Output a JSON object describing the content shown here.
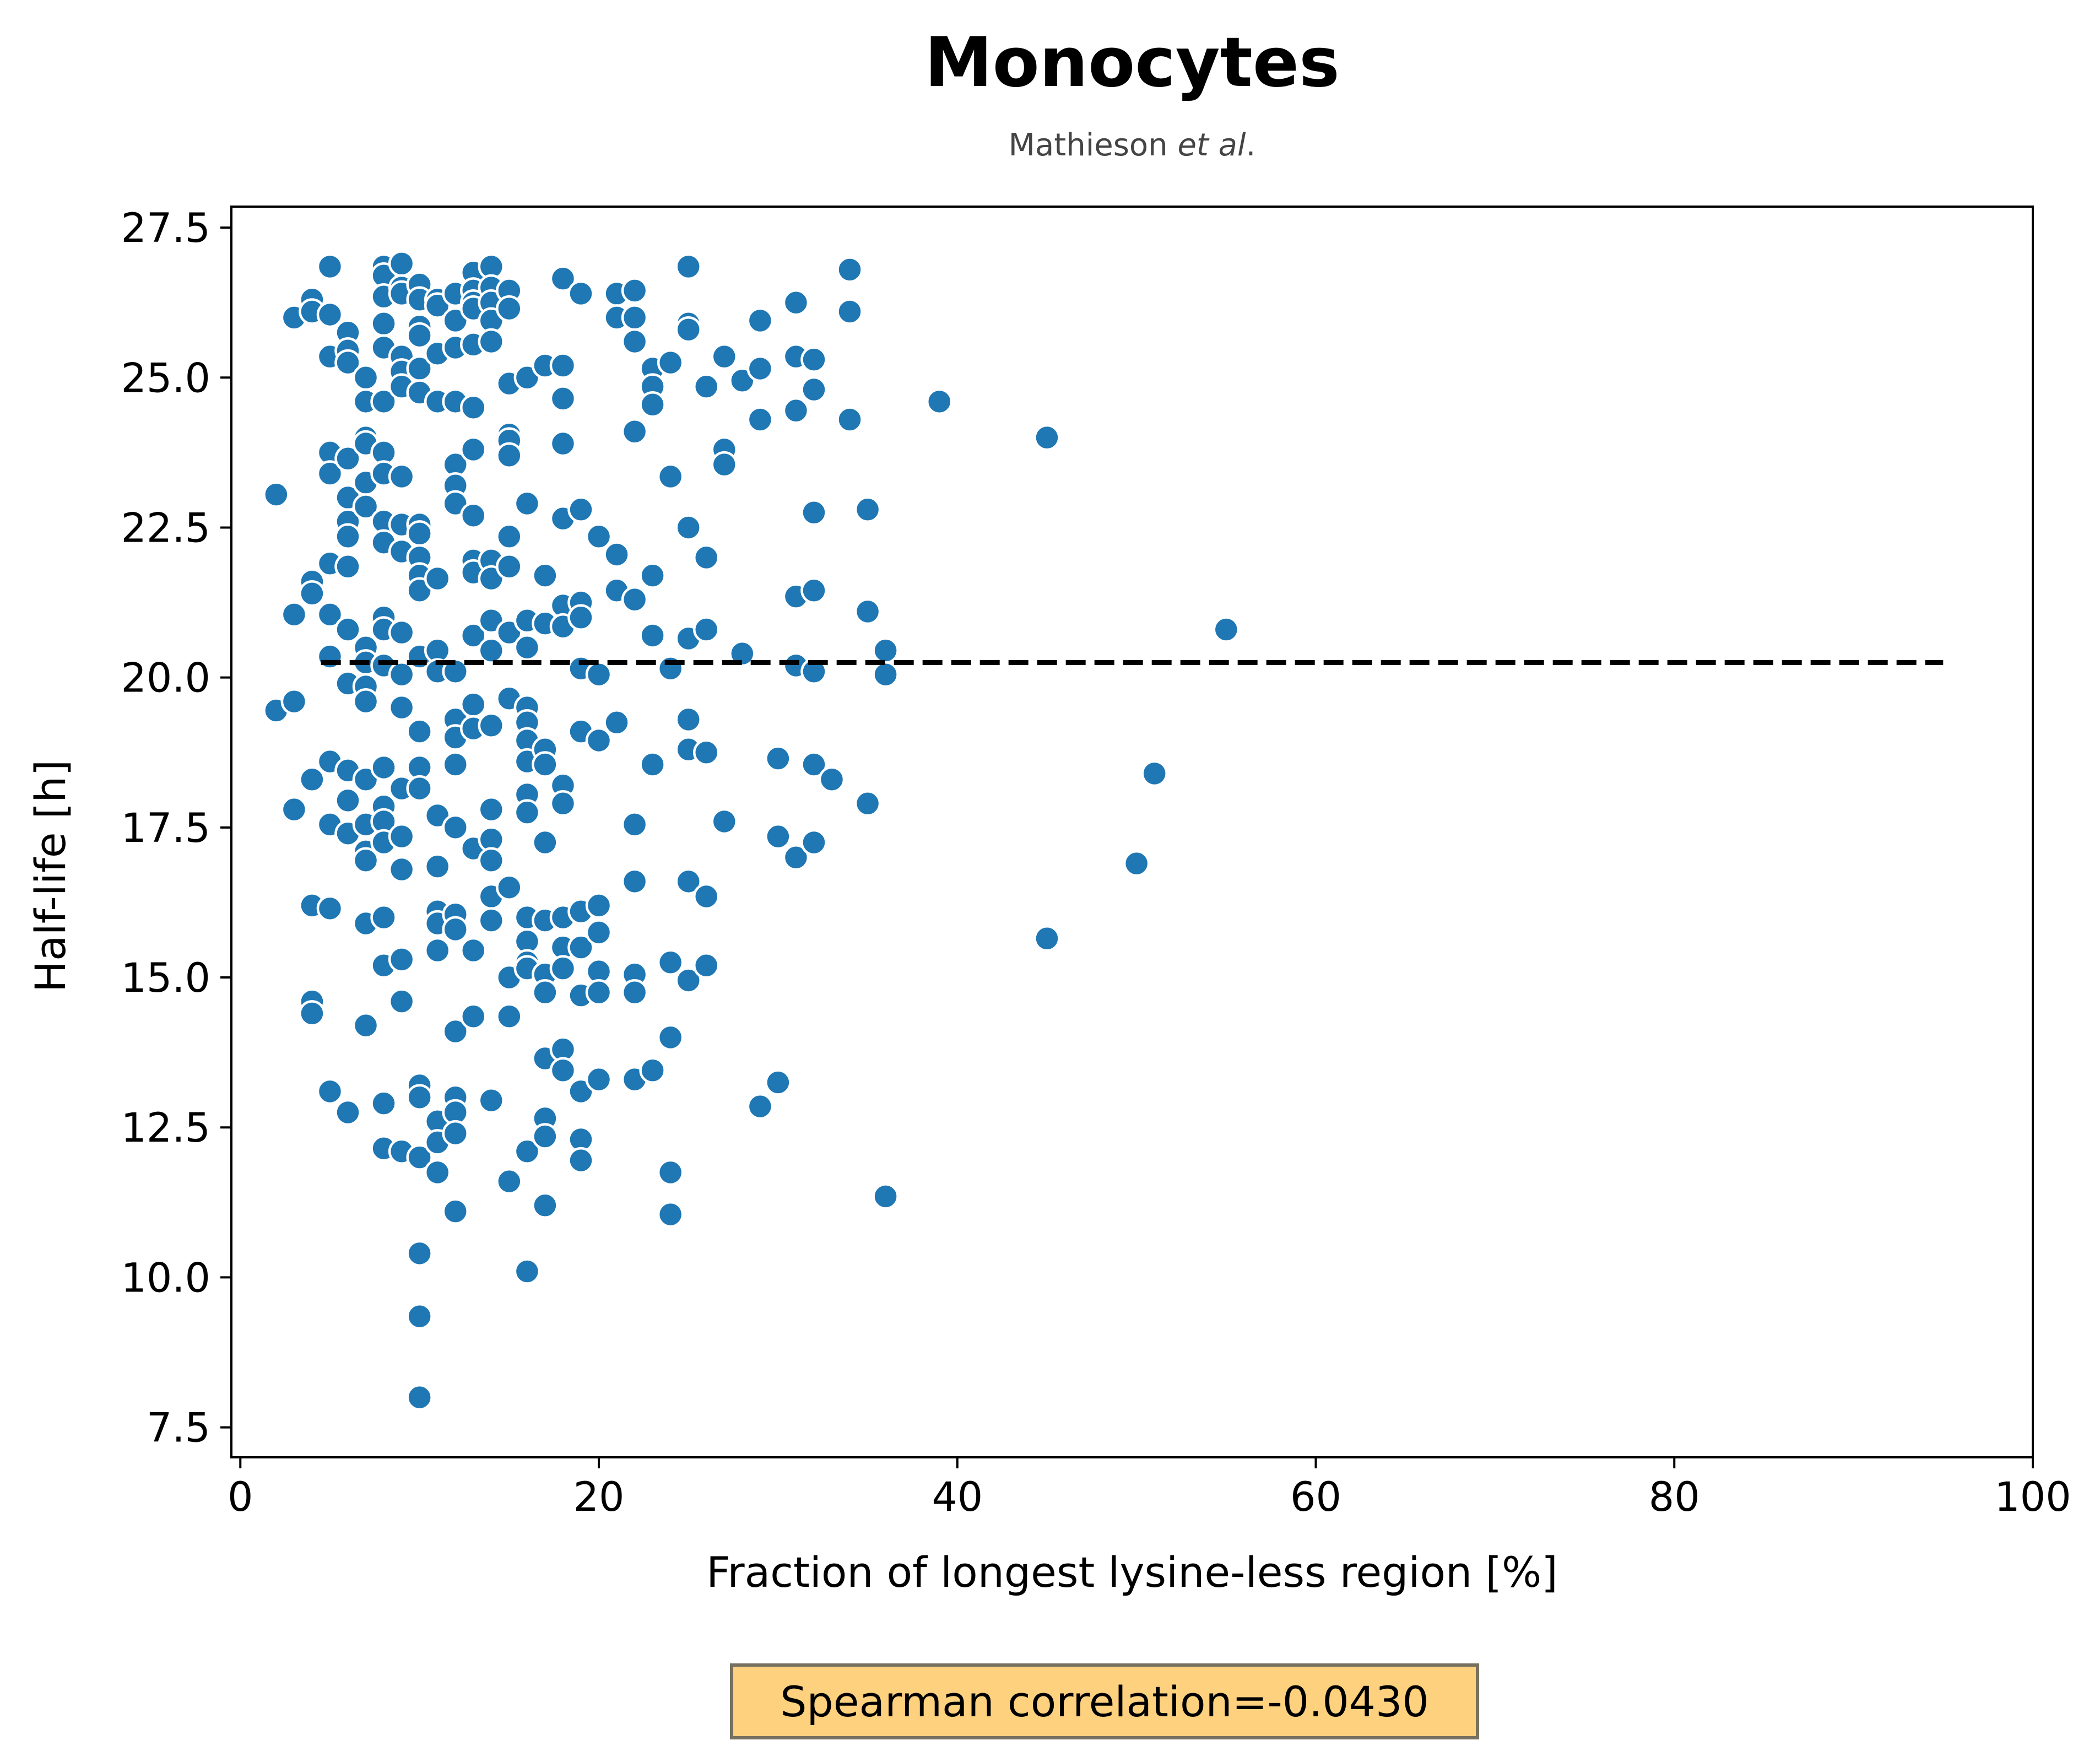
{
  "chart_data": {
    "type": "scatter",
    "title": "Monocytes",
    "subtitle_prefix": "Mathieson ",
    "subtitle_italic": "et al",
    "subtitle_suffix": ".",
    "xlabel": "Fraction of longest lysine-less region [%]",
    "ylabel": "Half-life [h]",
    "xlim": [
      -0.5,
      100
    ],
    "ylim": [
      7.0,
      27.85
    ],
    "xticks": [
      0,
      20,
      40,
      60,
      80,
      100
    ],
    "xtick_labels": [
      "0",
      "20",
      "40",
      "60",
      "80",
      "100"
    ],
    "yticks": [
      7.5,
      10.0,
      12.5,
      15.0,
      17.5,
      20.0,
      22.5,
      25.0,
      27.5
    ],
    "ytick_labels": [
      "7.5",
      "10.0",
      "12.5",
      "15.0",
      "17.5",
      "20.0",
      "22.5",
      "25.0",
      "27.5"
    ],
    "grid": false,
    "point_color": "#1f77b4",
    "trend_color": "#000000",
    "trend_line": {
      "x": [
        4.5,
        95
      ],
      "y": [
        20.25,
        20.25
      ],
      "style": "dashed"
    },
    "annotation": {
      "text": "Spearman correlation=-0.0430",
      "facecolor": "#fdd17e",
      "edgecolor": "#77705f"
    },
    "points": [
      [
        2,
        23.05
      ],
      [
        2,
        19.45
      ],
      [
        3,
        26.0
      ],
      [
        3,
        21.05
      ],
      [
        3,
        19.6
      ],
      [
        3,
        17.8
      ],
      [
        4,
        26.3
      ],
      [
        4,
        26.1
      ],
      [
        4,
        21.6
      ],
      [
        4,
        21.4
      ],
      [
        4,
        18.3
      ],
      [
        4,
        16.2
      ],
      [
        4,
        14.6
      ],
      [
        4,
        14.4
      ],
      [
        5,
        26.85
      ],
      [
        5,
        26.05
      ],
      [
        5,
        25.35
      ],
      [
        5,
        23.75
      ],
      [
        5,
        23.4
      ],
      [
        5,
        21.9
      ],
      [
        5,
        21.05
      ],
      [
        5,
        20.35
      ],
      [
        5,
        18.6
      ],
      [
        5,
        17.55
      ],
      [
        5,
        16.15
      ],
      [
        5,
        13.1
      ],
      [
        6,
        25.75
      ],
      [
        6,
        25.45
      ],
      [
        6,
        25.25
      ],
      [
        6,
        23.65
      ],
      [
        6,
        23.0
      ],
      [
        6,
        22.6
      ],
      [
        6,
        22.35
      ],
      [
        6,
        21.85
      ],
      [
        6,
        20.8
      ],
      [
        6,
        19.9
      ],
      [
        6,
        18.45
      ],
      [
        6,
        17.95
      ],
      [
        6,
        17.4
      ],
      [
        6,
        12.75
      ],
      [
        7,
        25.0
      ],
      [
        7,
        24.6
      ],
      [
        7,
        24.0
      ],
      [
        7,
        23.9
      ],
      [
        7,
        23.25
      ],
      [
        7,
        22.85
      ],
      [
        7,
        20.5
      ],
      [
        7,
        20.25
      ],
      [
        7,
        19.85
      ],
      [
        7,
        19.6
      ],
      [
        7,
        18.3
      ],
      [
        7,
        17.55
      ],
      [
        7,
        17.1
      ],
      [
        7,
        16.95
      ],
      [
        7,
        15.9
      ],
      [
        7,
        14.2
      ],
      [
        8,
        26.85
      ],
      [
        8,
        26.7
      ],
      [
        8,
        26.35
      ],
      [
        8,
        25.9
      ],
      [
        8,
        25.5
      ],
      [
        8,
        24.6
      ],
      [
        8,
        23.75
      ],
      [
        8,
        23.4
      ],
      [
        8,
        22.6
      ],
      [
        8,
        22.25
      ],
      [
        8,
        21.0
      ],
      [
        8,
        20.8
      ],
      [
        8,
        20.2
      ],
      [
        8,
        18.5
      ],
      [
        8,
        17.85
      ],
      [
        8,
        17.6
      ],
      [
        8,
        17.25
      ],
      [
        8,
        16.0
      ],
      [
        8,
        15.2
      ],
      [
        8,
        12.9
      ],
      [
        8,
        12.15
      ],
      [
        9,
        26.9
      ],
      [
        9,
        26.5
      ],
      [
        9,
        26.4
      ],
      [
        9,
        25.35
      ],
      [
        9,
        25.1
      ],
      [
        9,
        24.85
      ],
      [
        9,
        23.35
      ],
      [
        9,
        22.55
      ],
      [
        9,
        22.1
      ],
      [
        9,
        20.75
      ],
      [
        9,
        20.05
      ],
      [
        9,
        19.5
      ],
      [
        9,
        18.15
      ],
      [
        9,
        17.35
      ],
      [
        9,
        16.8
      ],
      [
        9,
        15.3
      ],
      [
        9,
        14.6
      ],
      [
        9,
        12.1
      ],
      [
        10,
        26.55
      ],
      [
        10,
        26.3
      ],
      [
        10,
        25.85
      ],
      [
        10,
        25.7
      ],
      [
        10,
        25.15
      ],
      [
        10,
        24.75
      ],
      [
        10,
        22.55
      ],
      [
        10,
        22.4
      ],
      [
        10,
        22.0
      ],
      [
        10,
        21.7
      ],
      [
        10,
        21.45
      ],
      [
        10,
        20.35
      ],
      [
        10,
        19.1
      ],
      [
        10,
        18.5
      ],
      [
        10,
        18.15
      ],
      [
        10,
        13.2
      ],
      [
        10,
        13.0
      ],
      [
        10,
        12.0
      ],
      [
        10,
        10.4
      ],
      [
        10,
        9.35
      ],
      [
        10,
        8.0
      ],
      [
        11,
        26.3
      ],
      [
        11,
        26.2
      ],
      [
        11,
        25.4
      ],
      [
        11,
        24.6
      ],
      [
        11,
        21.65
      ],
      [
        11,
        20.45
      ],
      [
        11,
        20.1
      ],
      [
        11,
        17.7
      ],
      [
        11,
        16.85
      ],
      [
        11,
        16.1
      ],
      [
        11,
        15.9
      ],
      [
        11,
        15.45
      ],
      [
        11,
        12.6
      ],
      [
        11,
        12.25
      ],
      [
        11,
        11.75
      ],
      [
        12,
        26.4
      ],
      [
        12,
        25.95
      ],
      [
        12,
        25.5
      ],
      [
        12,
        24.6
      ],
      [
        12,
        23.55
      ],
      [
        12,
        23.2
      ],
      [
        12,
        22.9
      ],
      [
        12,
        20.1
      ],
      [
        12,
        19.3
      ],
      [
        12,
        19.0
      ],
      [
        12,
        18.55
      ],
      [
        12,
        17.5
      ],
      [
        12,
        16.05
      ],
      [
        12,
        15.8
      ],
      [
        12,
        14.1
      ],
      [
        12,
        13.0
      ],
      [
        12,
        12.75
      ],
      [
        12,
        12.4
      ],
      [
        12,
        11.1
      ],
      [
        13,
        26.75
      ],
      [
        13,
        26.45
      ],
      [
        13,
        26.25
      ],
      [
        13,
        26.15
      ],
      [
        13,
        25.55
      ],
      [
        13,
        24.5
      ],
      [
        13,
        23.8
      ],
      [
        13,
        22.7
      ],
      [
        13,
        21.95
      ],
      [
        13,
        21.75
      ],
      [
        13,
        20.7
      ],
      [
        13,
        19.55
      ],
      [
        13,
        19.15
      ],
      [
        13,
        17.15
      ],
      [
        13,
        15.45
      ],
      [
        13,
        14.35
      ],
      [
        14,
        26.85
      ],
      [
        14,
        26.5
      ],
      [
        14,
        26.25
      ],
      [
        14,
        25.95
      ],
      [
        14,
        25.6
      ],
      [
        14,
        21.95
      ],
      [
        14,
        21.65
      ],
      [
        14,
        20.95
      ],
      [
        14,
        20.45
      ],
      [
        14,
        19.2
      ],
      [
        14,
        17.8
      ],
      [
        14,
        17.3
      ],
      [
        14,
        16.95
      ],
      [
        14,
        16.35
      ],
      [
        14,
        15.95
      ],
      [
        14,
        12.95
      ],
      [
        15,
        26.45
      ],
      [
        15,
        26.15
      ],
      [
        15,
        24.9
      ],
      [
        15,
        24.05
      ],
      [
        15,
        23.95
      ],
      [
        15,
        23.7
      ],
      [
        15,
        22.35
      ],
      [
        15,
        21.85
      ],
      [
        15,
        20.75
      ],
      [
        15,
        19.65
      ],
      [
        15,
        16.5
      ],
      [
        15,
        15.0
      ],
      [
        15,
        14.35
      ],
      [
        15,
        11.6
      ],
      [
        16,
        25.0
      ],
      [
        16,
        22.9
      ],
      [
        16,
        20.95
      ],
      [
        16,
        20.5
      ],
      [
        16,
        19.5
      ],
      [
        16,
        19.25
      ],
      [
        16,
        18.95
      ],
      [
        16,
        18.6
      ],
      [
        16,
        18.05
      ],
      [
        16,
        17.75
      ],
      [
        16,
        16.0
      ],
      [
        16,
        15.6
      ],
      [
        16,
        15.25
      ],
      [
        16,
        15.15
      ],
      [
        16,
        12.1
      ],
      [
        16,
        10.1
      ],
      [
        17,
        25.2
      ],
      [
        17,
        21.7
      ],
      [
        17,
        20.9
      ],
      [
        17,
        18.8
      ],
      [
        17,
        18.55
      ],
      [
        17,
        17.25
      ],
      [
        17,
        15.95
      ],
      [
        17,
        15.05
      ],
      [
        17,
        14.75
      ],
      [
        17,
        13.65
      ],
      [
        17,
        12.65
      ],
      [
        17,
        12.35
      ],
      [
        17,
        11.2
      ],
      [
        18,
        26.65
      ],
      [
        18,
        25.2
      ],
      [
        18,
        24.65
      ],
      [
        18,
        23.9
      ],
      [
        18,
        22.65
      ],
      [
        18,
        21.2
      ],
      [
        18,
        20.85
      ],
      [
        18,
        18.2
      ],
      [
        18,
        17.9
      ],
      [
        18,
        16.0
      ],
      [
        18,
        15.5
      ],
      [
        18,
        15.15
      ],
      [
        18,
        13.8
      ],
      [
        18,
        13.45
      ],
      [
        19,
        26.4
      ],
      [
        19,
        22.8
      ],
      [
        19,
        21.25
      ],
      [
        19,
        21.0
      ],
      [
        19,
        20.15
      ],
      [
        19,
        19.1
      ],
      [
        19,
        16.1
      ],
      [
        19,
        15.5
      ],
      [
        19,
        14.7
      ],
      [
        19,
        13.1
      ],
      [
        19,
        12.3
      ],
      [
        19,
        11.95
      ],
      [
        20,
        22.35
      ],
      [
        20,
        20.05
      ],
      [
        20,
        18.95
      ],
      [
        20,
        16.2
      ],
      [
        20,
        15.75
      ],
      [
        20,
        15.1
      ],
      [
        20,
        14.75
      ],
      [
        20,
        13.3
      ],
      [
        21,
        26.4
      ],
      [
        21,
        26.0
      ],
      [
        21,
        22.05
      ],
      [
        21,
        21.45
      ],
      [
        21,
        19.25
      ],
      [
        22,
        26.45
      ],
      [
        22,
        26.0
      ],
      [
        22,
        25.6
      ],
      [
        22,
        24.1
      ],
      [
        22,
        21.3
      ],
      [
        22,
        17.55
      ],
      [
        22,
        16.6
      ],
      [
        22,
        15.05
      ],
      [
        22,
        14.75
      ],
      [
        22,
        13.3
      ],
      [
        23,
        25.15
      ],
      [
        23,
        24.85
      ],
      [
        23,
        24.55
      ],
      [
        23,
        21.7
      ],
      [
        23,
        20.7
      ],
      [
        23,
        18.55
      ],
      [
        23,
        13.45
      ],
      [
        24,
        25.25
      ],
      [
        24,
        23.35
      ],
      [
        24,
        20.15
      ],
      [
        24,
        15.25
      ],
      [
        24,
        14.0
      ],
      [
        24,
        11.75
      ],
      [
        24,
        11.05
      ],
      [
        25,
        26.85
      ],
      [
        25,
        25.9
      ],
      [
        25,
        25.8
      ],
      [
        25,
        22.5
      ],
      [
        25,
        20.65
      ],
      [
        25,
        19.3
      ],
      [
        25,
        18.8
      ],
      [
        25,
        16.6
      ],
      [
        25,
        14.95
      ],
      [
        26,
        24.85
      ],
      [
        26,
        22.0
      ],
      [
        26,
        20.8
      ],
      [
        26,
        18.75
      ],
      [
        26,
        16.35
      ],
      [
        26,
        15.2
      ],
      [
        27,
        25.35
      ],
      [
        27,
        23.8
      ],
      [
        27,
        23.55
      ],
      [
        27,
        17.6
      ],
      [
        28,
        24.95
      ],
      [
        28,
        20.4
      ],
      [
        29,
        25.95
      ],
      [
        29,
        25.15
      ],
      [
        29,
        24.3
      ],
      [
        29,
        12.85
      ],
      [
        30,
        18.65
      ],
      [
        30,
        17.35
      ],
      [
        30,
        13.25
      ],
      [
        31,
        26.25
      ],
      [
        31,
        25.35
      ],
      [
        31,
        24.45
      ],
      [
        31,
        21.35
      ],
      [
        31,
        20.2
      ],
      [
        31,
        17.0
      ],
      [
        32,
        25.3
      ],
      [
        32,
        24.8
      ],
      [
        32,
        22.75
      ],
      [
        32,
        21.45
      ],
      [
        32,
        20.1
      ],
      [
        32,
        18.55
      ],
      [
        32,
        17.25
      ],
      [
        33,
        18.3
      ],
      [
        34,
        26.8
      ],
      [
        34,
        26.1
      ],
      [
        34,
        24.3
      ],
      [
        35,
        22.8
      ],
      [
        35,
        21.1
      ],
      [
        35,
        17.9
      ],
      [
        36,
        20.45
      ],
      [
        36,
        20.05
      ],
      [
        36,
        11.35
      ],
      [
        39,
        24.6
      ],
      [
        45,
        24.0
      ],
      [
        45,
        15.65
      ],
      [
        50,
        16.9
      ],
      [
        51,
        18.4
      ],
      [
        55,
        20.8
      ]
    ]
  }
}
